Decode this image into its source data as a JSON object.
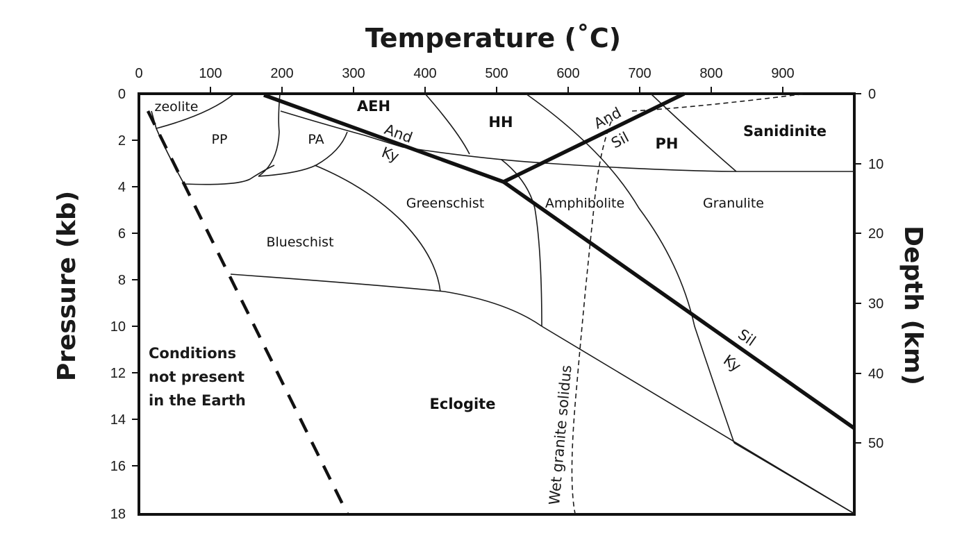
{
  "diagram": {
    "top_axis": {
      "title": "Temperature (˚C)",
      "ticks": [
        "0",
        "100",
        "200",
        "300",
        "400",
        "500",
        "600",
        "700",
        "800",
        "900"
      ]
    },
    "left_axis": {
      "title": "Pressure (kb)",
      "ticks": [
        "0",
        "2",
        "4",
        "6",
        "8",
        "10",
        "12",
        "14",
        "16",
        "18"
      ]
    },
    "right_axis": {
      "title": "Depth (km)",
      "ticks": [
        "0",
        "10",
        "20",
        "30",
        "40",
        "50"
      ]
    },
    "facies_labels": {
      "zeolite": "zeolite",
      "pp": "PP",
      "pa": "PA",
      "aeh": "AEH",
      "hh": "HH",
      "ph": "PH",
      "sanidinite": "Sanidinite",
      "greenschist": "Greenschist",
      "amphibolite": "Amphibolite",
      "granulite": "Granulite",
      "blueschist": "Blueschist",
      "eclogite": "Eclogite"
    },
    "mineral_labels": {
      "and_1": "And",
      "ky_1": "Ky",
      "and_2": "And",
      "sil_2": "Sil",
      "sil_3": "Sil",
      "ky_3": "Ky"
    },
    "curve_labels": {
      "wet_granite_solidus": "Wet granite solidus"
    },
    "note": {
      "line1": "Conditions",
      "line2": "not present",
      "line3": "in the Earth"
    }
  }
}
